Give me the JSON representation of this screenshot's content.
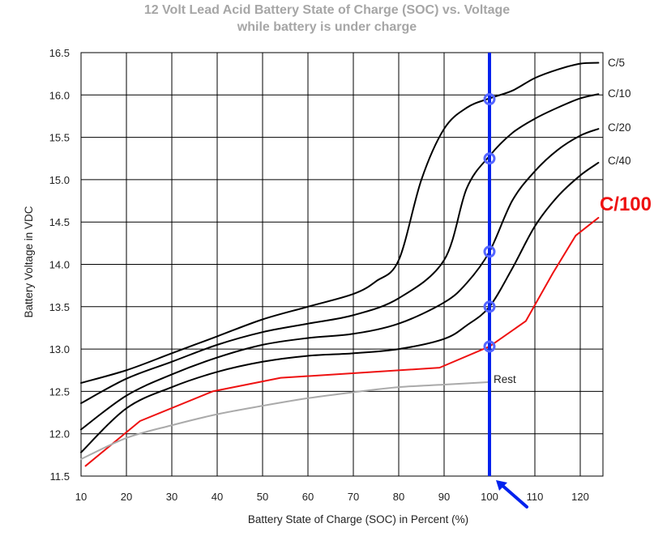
{
  "chart_data": {
    "type": "line",
    "title": "12 Volt Lead Acid Battery State of Charge (SOC) vs. Voltage",
    "subtitle": "while battery is under charge",
    "xlabel": "Battery State of Charge (SOC) in Percent (%)",
    "ylabel": "Battery Voltage in VDC",
    "xlim": [
      10,
      125
    ],
    "ylim": [
      11.5,
      16.5
    ],
    "xticks": [
      "10",
      "20",
      "30",
      "40",
      "50",
      "60",
      "70",
      "80",
      "90",
      "100",
      "110",
      "120"
    ],
    "yticks": [
      "11.5",
      "12.0",
      "12.5",
      "13.0",
      "13.5",
      "14.0",
      "14.5",
      "15.0",
      "15.5",
      "16.0",
      "16.5"
    ],
    "grid": true,
    "series": [
      {
        "name": "C/5",
        "color": "#000000",
        "x": [
          10,
          20,
          30,
          40,
          50,
          60,
          70,
          75,
          80,
          85,
          90,
          95,
          100,
          105,
          110,
          115,
          120,
          124
        ],
        "y": [
          12.6,
          12.75,
          12.95,
          13.15,
          13.35,
          13.5,
          13.65,
          13.8,
          14.05,
          15.0,
          15.6,
          15.85,
          15.96,
          16.05,
          16.2,
          16.3,
          16.37,
          16.38
        ]
      },
      {
        "name": "C/10",
        "color": "#000000",
        "x": [
          10,
          20,
          30,
          40,
          50,
          60,
          70,
          80,
          90,
          95,
          100,
          105,
          110,
          115,
          120,
          124
        ],
        "y": [
          12.36,
          12.65,
          12.85,
          13.05,
          13.2,
          13.3,
          13.4,
          13.6,
          14.05,
          14.9,
          15.28,
          15.55,
          15.72,
          15.85,
          15.96,
          16.01
        ]
      },
      {
        "name": "C/20",
        "color": "#000000",
        "x": [
          10,
          20,
          30,
          40,
          50,
          60,
          70,
          80,
          90,
          95,
          100,
          105,
          110,
          115,
          120,
          124
        ],
        "y": [
          12.05,
          12.45,
          12.7,
          12.9,
          13.05,
          13.13,
          13.18,
          13.3,
          13.55,
          13.78,
          14.15,
          14.75,
          15.1,
          15.35,
          15.52,
          15.6
        ]
      },
      {
        "name": "C/40",
        "color": "#000000",
        "x": [
          10,
          20,
          30,
          40,
          50,
          60,
          70,
          80,
          90,
          95,
          100,
          105,
          110,
          115,
          120,
          124
        ],
        "y": [
          11.78,
          12.3,
          12.55,
          12.73,
          12.85,
          12.92,
          12.95,
          13.0,
          13.12,
          13.28,
          13.5,
          13.95,
          14.45,
          14.8,
          15.05,
          15.2
        ]
      },
      {
        "name": "C/100",
        "color": "#ee1111",
        "label_color": "#ee1111",
        "x": [
          11,
          23,
          39,
          54,
          89,
          100,
          108,
          114,
          119,
          124
        ],
        "y": [
          11.62,
          12.15,
          12.5,
          12.66,
          12.78,
          13.03,
          13.33,
          13.9,
          14.34,
          14.55
        ]
      },
      {
        "name": "Rest",
        "color": "#aaaaaa",
        "x": [
          10,
          20,
          30,
          40,
          50,
          60,
          70,
          80,
          90,
          100
        ],
        "y": [
          11.7,
          11.95,
          12.1,
          12.23,
          12.33,
          12.42,
          12.49,
          12.55,
          12.58,
          12.61
        ]
      }
    ],
    "marker_line": {
      "x": 100,
      "color": "#0022ee"
    },
    "markers": [
      {
        "x": 100,
        "y": 15.95
      },
      {
        "x": 100,
        "y": 15.25
      },
      {
        "x": 100,
        "y": 14.15
      },
      {
        "x": 100,
        "y": 13.5
      },
      {
        "x": 100,
        "y": 13.03
      }
    ],
    "marker_color": "#5566ff",
    "arrow": {
      "points_to_x": 100,
      "color": "#0022ee"
    },
    "label_color": "#222222",
    "grid_color": "#000000"
  }
}
